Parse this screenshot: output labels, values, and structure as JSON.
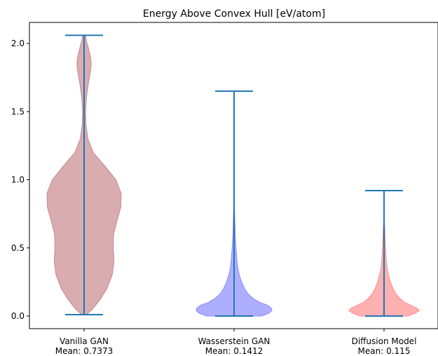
{
  "chart_data": {
    "type": "violin",
    "title": "Energy Above Convex Hull [eV/atom]",
    "xlabel": "",
    "ylabel": "",
    "ylim": [
      -0.1,
      2.17
    ],
    "yticks": [
      "0.0",
      "0.5",
      "1.0",
      "1.5",
      "2.0"
    ],
    "ytick_values": [
      0.0,
      0.5,
      1.0,
      1.5,
      2.0
    ],
    "grid": false,
    "line_color": "#1f77b4",
    "series": [
      {
        "label": "Vanilla GAN",
        "mean_label": "Mean: 0.7373",
        "color": "#c9898e",
        "min": 0.01,
        "max": 2.06,
        "profile": [
          [
            0.01,
            0.06
          ],
          [
            0.05,
            0.22
          ],
          [
            0.12,
            0.42
          ],
          [
            0.2,
            0.6
          ],
          [
            0.3,
            0.74
          ],
          [
            0.4,
            0.79
          ],
          [
            0.5,
            0.77
          ],
          [
            0.6,
            0.78
          ],
          [
            0.7,
            0.87
          ],
          [
            0.8,
            0.97
          ],
          [
            0.9,
            0.98
          ],
          [
            1.0,
            0.84
          ],
          [
            1.1,
            0.55
          ],
          [
            1.2,
            0.24
          ],
          [
            1.3,
            0.1
          ],
          [
            1.4,
            0.05
          ],
          [
            1.5,
            0.04
          ],
          [
            1.6,
            0.06
          ],
          [
            1.7,
            0.11
          ],
          [
            1.8,
            0.17
          ],
          [
            1.85,
            0.19
          ],
          [
            1.9,
            0.17
          ],
          [
            1.97,
            0.11
          ],
          [
            2.02,
            0.06
          ],
          [
            2.06,
            0.04
          ]
        ]
      },
      {
        "label": "Wasserstein GAN",
        "mean_label": "Mean: 0.1412",
        "color": "#8c8cff",
        "min": 0.0,
        "max": 1.65,
        "profile": [
          [
            0.0,
            0.72
          ],
          [
            0.02,
            0.92
          ],
          [
            0.04,
            1.0
          ],
          [
            0.06,
            0.98
          ],
          [
            0.08,
            0.88
          ],
          [
            0.1,
            0.68
          ],
          [
            0.13,
            0.5
          ],
          [
            0.16,
            0.38
          ],
          [
            0.2,
            0.28
          ],
          [
            0.25,
            0.2
          ],
          [
            0.3,
            0.14
          ],
          [
            0.35,
            0.1
          ],
          [
            0.4,
            0.08
          ],
          [
            0.5,
            0.05
          ],
          [
            0.6,
            0.03
          ],
          [
            0.7,
            0.02
          ],
          [
            0.8,
            0.01
          ],
          [
            1.0,
            0.005
          ],
          [
            1.3,
            0.003
          ],
          [
            1.65,
            0.002
          ]
        ]
      },
      {
        "label": "Diffusion Model",
        "mean_label": "Mean: 0.115",
        "color": "#ff8f8f",
        "min": 0.0,
        "max": 0.92,
        "profile": [
          [
            0.0,
            0.62
          ],
          [
            0.02,
            0.82
          ],
          [
            0.04,
            0.93
          ],
          [
            0.06,
            0.86
          ],
          [
            0.08,
            0.7
          ],
          [
            0.1,
            0.55
          ],
          [
            0.13,
            0.42
          ],
          [
            0.16,
            0.32
          ],
          [
            0.2,
            0.24
          ],
          [
            0.25,
            0.17
          ],
          [
            0.3,
            0.12
          ],
          [
            0.35,
            0.08
          ],
          [
            0.4,
            0.06
          ],
          [
            0.5,
            0.04
          ],
          [
            0.6,
            0.025
          ],
          [
            0.7,
            0.01
          ],
          [
            0.8,
            0.005
          ],
          [
            0.92,
            0.002
          ]
        ]
      }
    ]
  }
}
